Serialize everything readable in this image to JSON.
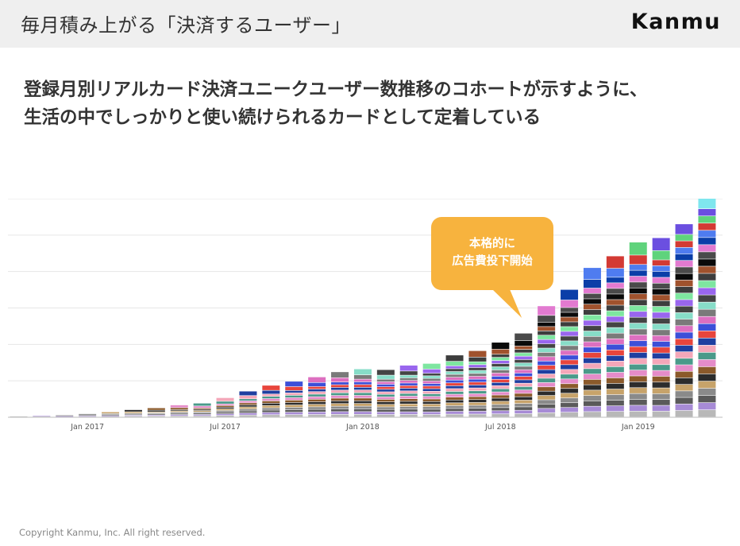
{
  "header": {
    "title": "毎月積み上がる「決済するユーザー」",
    "logo": "Kanmu"
  },
  "headline": {
    "line1": "登録月別リアルカード決済ユニークユーザー数推移のコホートが示すように、",
    "line2": "生活の中でしっかりと使い続けられるカードとして定着している"
  },
  "callout": {
    "line1": "本格的に",
    "line2": "広告費投下開始"
  },
  "footer": {
    "copyright": "Copyright Kanmu, Inc. All right reserved."
  },
  "chart_data": {
    "type": "bar",
    "stacked": true,
    "title": "",
    "xlabel": "",
    "ylabel": "",
    "ylim": [
      0,
      6
    ],
    "grid": true,
    "y_tick_labels_shown": false,
    "x_tick_labels": [
      "Jan 2017",
      "Jul 2017",
      "Jan 2018",
      "Jul 2018",
      "Jan 2019"
    ],
    "x_tick_positions": [
      3,
      9,
      15,
      21,
      27
    ],
    "categories": [
      "2016-10",
      "2016-11",
      "2016-12",
      "2017-01",
      "2017-02",
      "2017-03",
      "2017-04",
      "2017-05",
      "2017-06",
      "2017-07",
      "2017-08",
      "2017-09",
      "2017-10",
      "2017-11",
      "2017-12",
      "2018-01",
      "2018-02",
      "2018-03",
      "2018-04",
      "2018-05",
      "2018-06",
      "2018-07",
      "2018-08",
      "2018-09",
      "2018-10",
      "2018-11",
      "2018-12",
      "2019-01",
      "2019-02",
      "2019-03",
      "2019-04"
    ],
    "totals": [
      0.02,
      0.04,
      0.05,
      0.09,
      0.14,
      0.2,
      0.25,
      0.33,
      0.38,
      0.53,
      0.71,
      0.87,
      0.98,
      1.1,
      1.24,
      1.32,
      1.3,
      1.42,
      1.47,
      1.7,
      1.82,
      2.05,
      2.3,
      3.05,
      3.5,
      4.1,
      4.42,
      4.8,
      4.92,
      5.3,
      6.15
    ],
    "cohort_palette": [
      "#b8b8b8",
      "#a78bd6",
      "#5a5a5a",
      "#8a8a8a",
      "#c7a36a",
      "#2c2c2c",
      "#8b5a2b",
      "#e58cc9",
      "#4a9a8a",
      "#f4a7b9",
      "#1f3fa0",
      "#e8453c",
      "#3c4fd8",
      "#dd6fc0",
      "#7a7a7a",
      "#87ddc8",
      "#444444",
      "#9966ee",
      "#7ee6a0",
      "#3d3d3d",
      "#a0522d",
      "#0a0a0a",
      "#4a4a4a",
      "#e27ad0",
      "#0b3ea8",
      "#4f7cf0",
      "#d33a34",
      "#5fd37c",
      "#6b4fe0",
      "#7fe6ee"
    ],
    "cohort_start_index": [
      0,
      1,
      2,
      3,
      4,
      5,
      6,
      7,
      8,
      9,
      10,
      11,
      12,
      13,
      14,
      15,
      16,
      17,
      18,
      19,
      20,
      21,
      22,
      23,
      24,
      25,
      26,
      27,
      28,
      30
    ]
  }
}
